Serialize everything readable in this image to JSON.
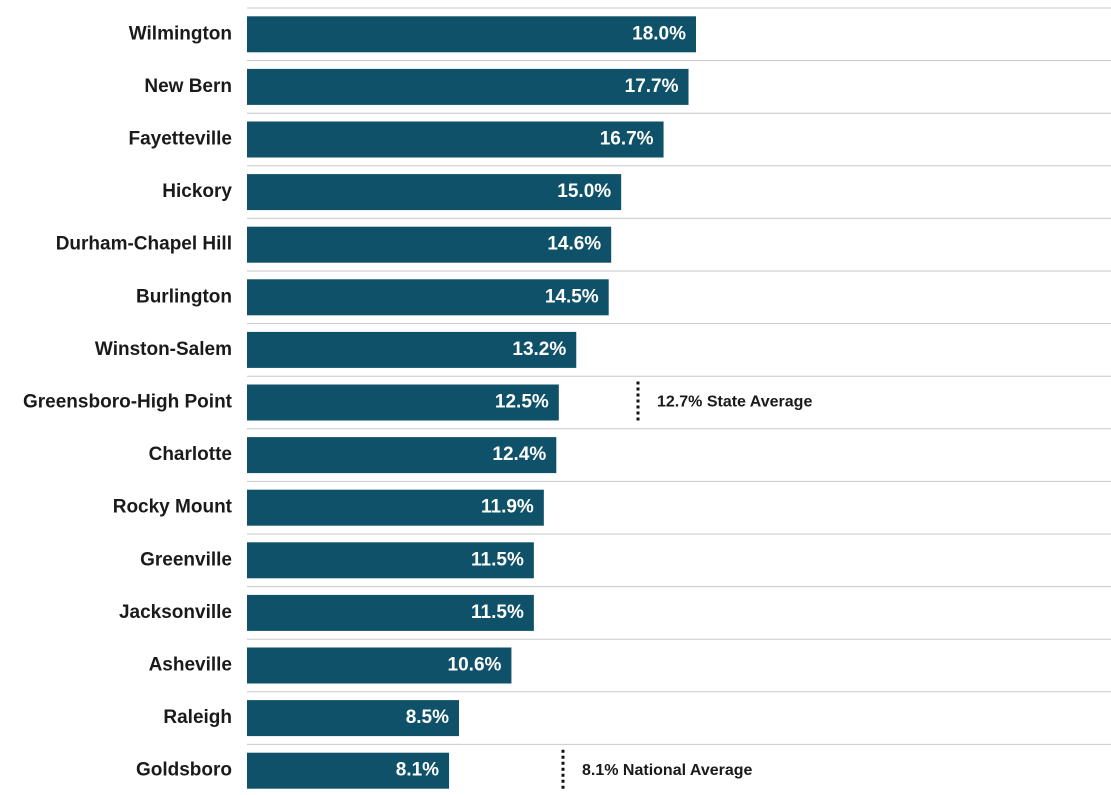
{
  "chart_data": {
    "type": "barh",
    "categories": [
      "Wilmington",
      "New Bern",
      "Fayetteville",
      "Hickory",
      "Durham-Chapel Hill",
      "Burlington",
      "Winston-Salem",
      "Greensboro-High Point",
      "Charlotte",
      "Rocky Mount",
      "Greenville",
      "Jacksonville",
      "Asheville",
      "Raleigh",
      "Goldsboro"
    ],
    "values": [
      18.0,
      17.7,
      16.7,
      15.0,
      14.6,
      14.5,
      13.2,
      12.5,
      12.4,
      11.9,
      11.5,
      11.5,
      10.6,
      8.5,
      8.1
    ],
    "value_labels": [
      "18.0%",
      "17.7%",
      "16.7%",
      "15.0%",
      "14.6%",
      "14.5%",
      "13.2%",
      "12.5%",
      "12.4%",
      "11.9%",
      "11.5%",
      "11.5%",
      "10.6%",
      "8.5%",
      "8.1%"
    ],
    "color": "#0e5169",
    "annotations": [
      "12.7% State Average",
      "8.1% National Average"
    ]
  }
}
